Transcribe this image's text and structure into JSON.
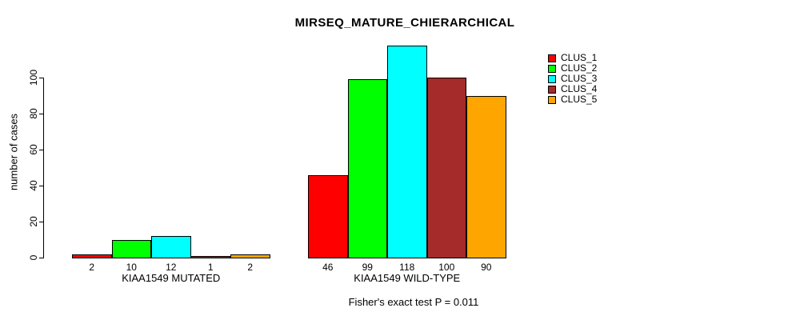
{
  "figure": {
    "title": "MIRSEQ_MATURE_CHIERARCHICAL",
    "y_axis_label": "number of cases",
    "annotation": "Fisher's exact test P = 0.011"
  },
  "chart_data": {
    "type": "bar",
    "title": "MIRSEQ_MATURE_CHIERARCHICAL",
    "xlabel": "",
    "ylabel": "number of cases",
    "ylim": [
      0,
      100
    ],
    "yticks": [
      0,
      20,
      40,
      60,
      80,
      100
    ],
    "grid": false,
    "legend_position": "top-right",
    "categories": [
      "KIAA1549 MUTATED",
      "KIAA1549 WILD-TYPE"
    ],
    "series": [
      {
        "name": "CLUS_1",
        "color": "#FF0000",
        "values": [
          2,
          46
        ]
      },
      {
        "name": "CLUS_2",
        "color": "#00FF00",
        "values": [
          10,
          99
        ]
      },
      {
        "name": "CLUS_3",
        "color": "#00FFFF",
        "values": [
          12,
          118
        ]
      },
      {
        "name": "CLUS_4",
        "color": "#A52A2A",
        "values": [
          1,
          100
        ]
      },
      {
        "name": "CLUS_5",
        "color": "#FFA500",
        "values": [
          2,
          90
        ]
      }
    ],
    "bar_value_labels": [
      [
        2,
        10,
        12,
        1,
        2
      ],
      [
        46,
        99,
        118,
        100,
        90
      ]
    ],
    "annotation": "Fisher's exact test P = 0.011"
  }
}
